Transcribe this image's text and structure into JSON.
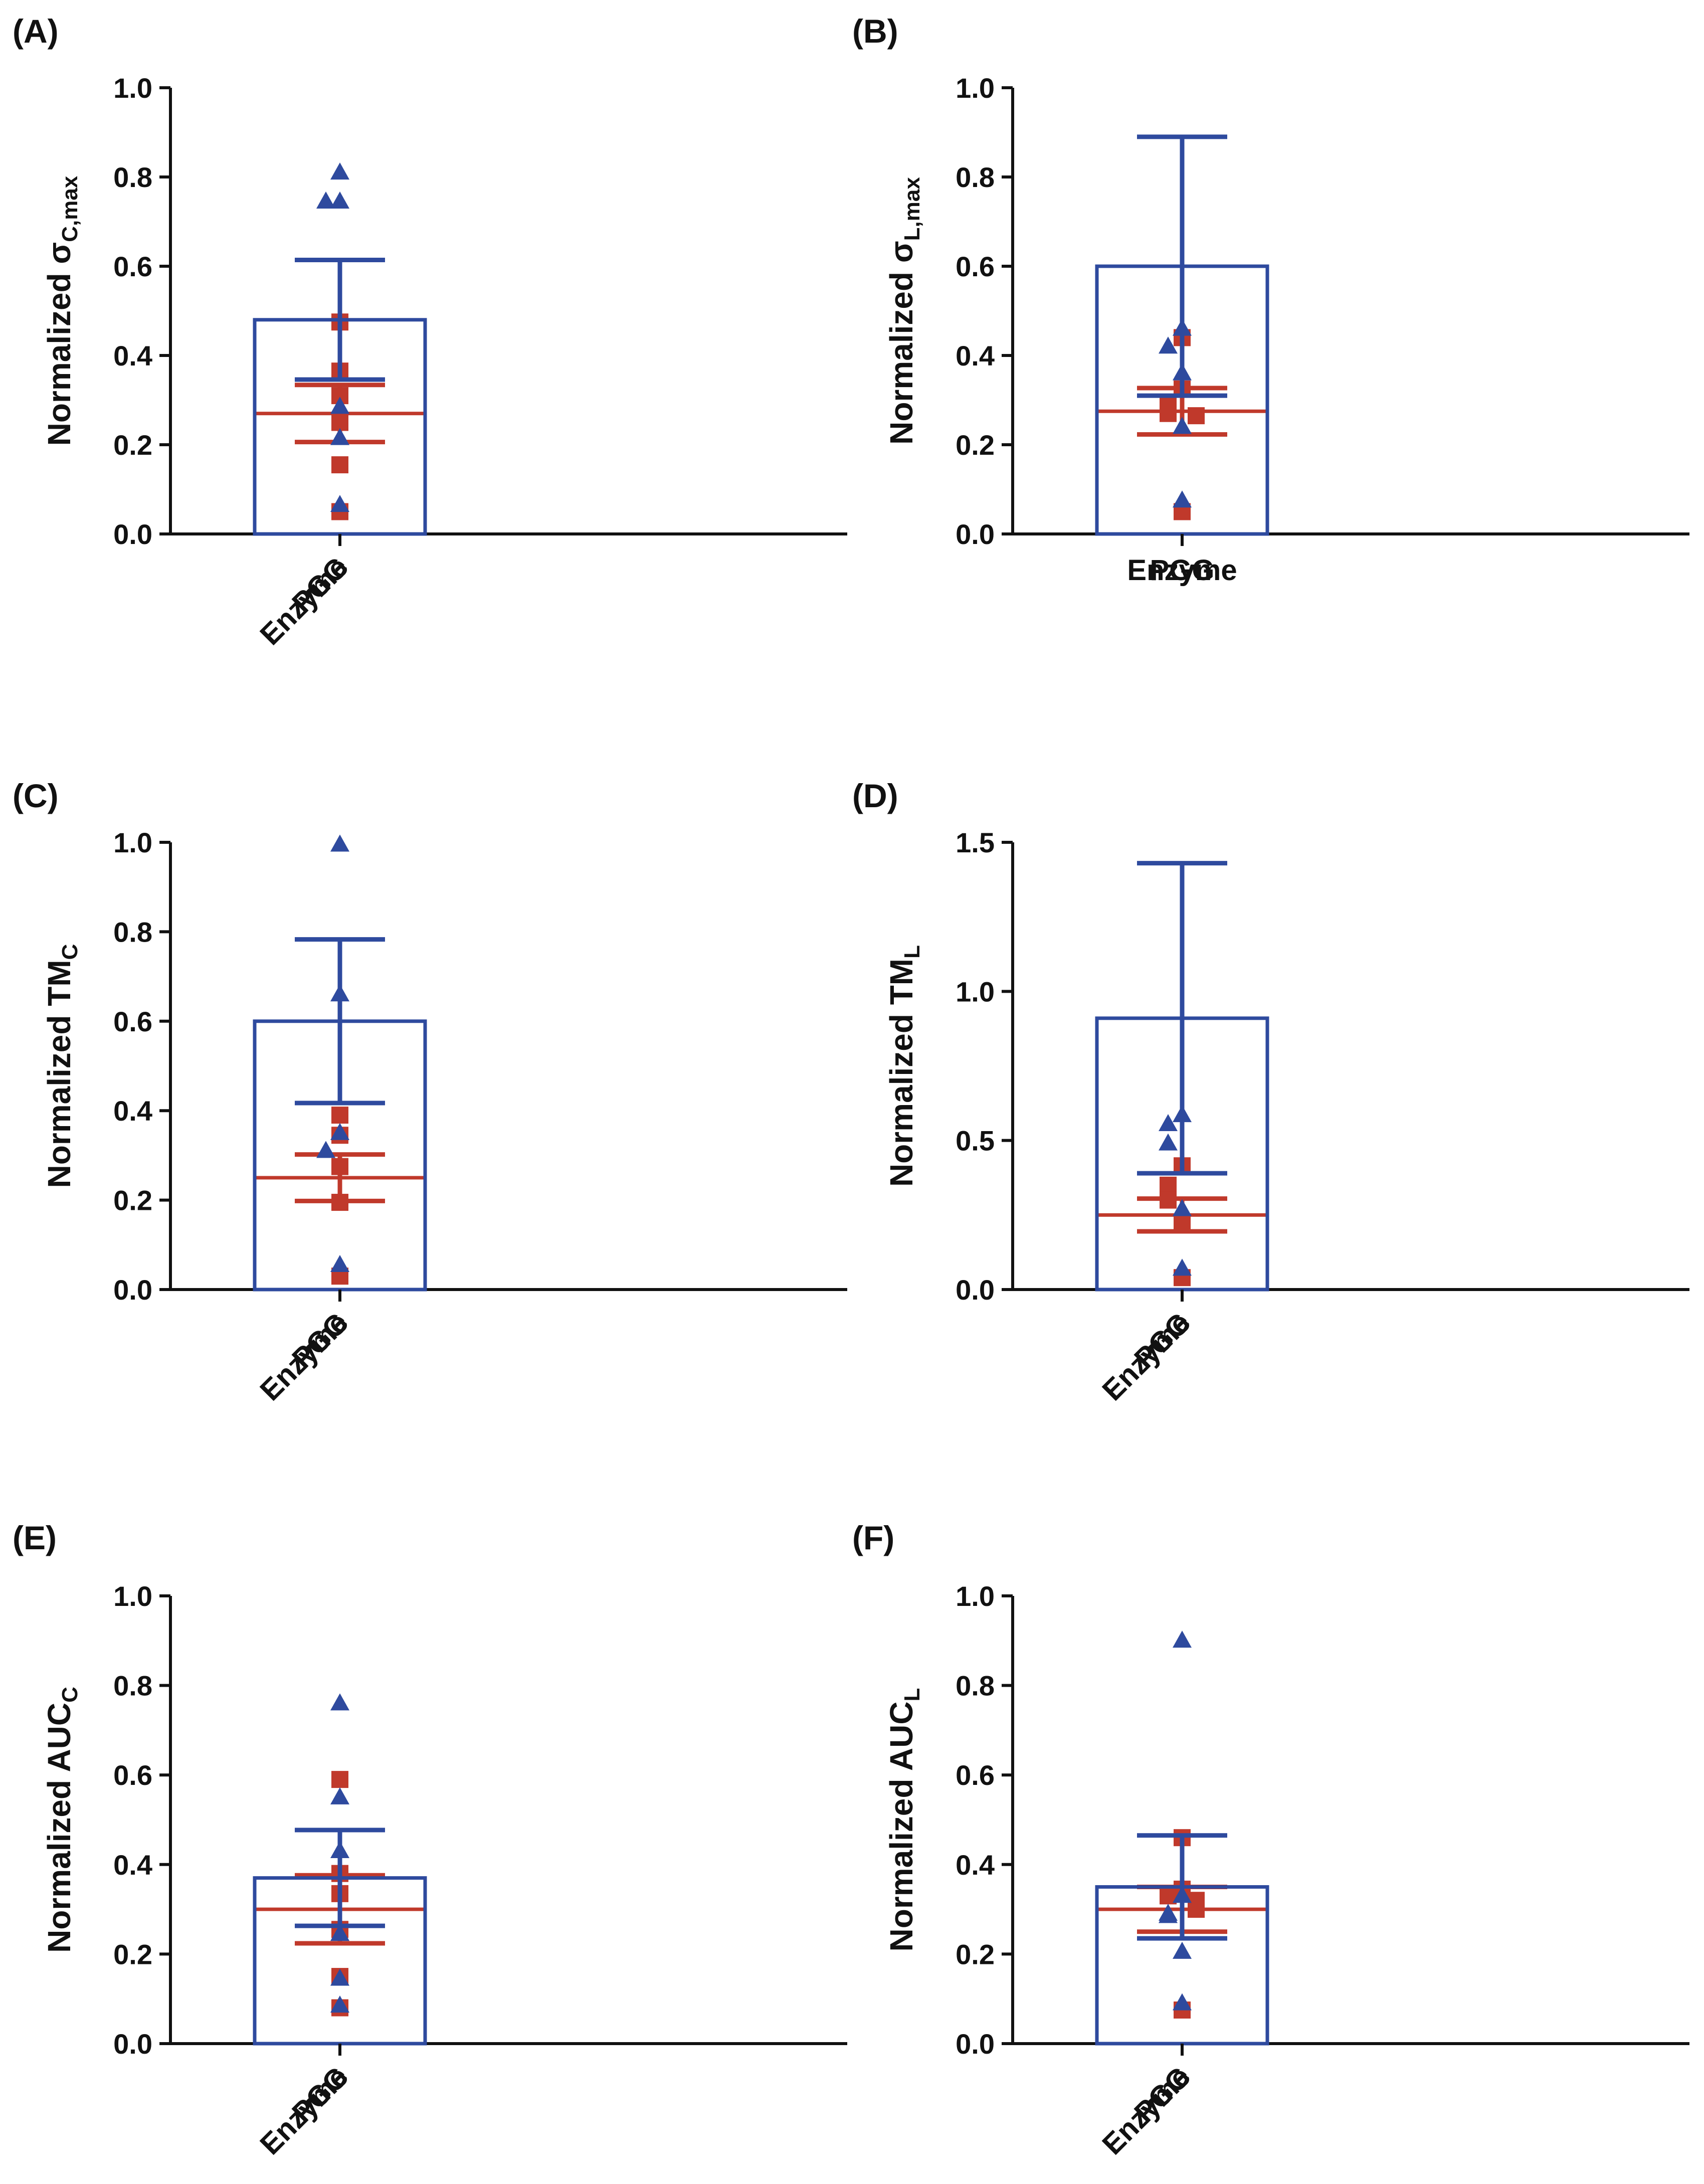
{
  "colors": {
    "enzyme": "#c0392b",
    "pgg": "#2e4a9e",
    "axis": "#111111"
  },
  "chart_data": [
    {
      "panel": "(A)",
      "type": "bar",
      "ylabel": {
        "main": "Normalized ",
        "symbol": "σ",
        "sub": "C,max"
      },
      "ylim": [
        0,
        1.0
      ],
      "yticks": [
        "0.0",
        "0.2",
        "0.4",
        "0.6",
        "0.8",
        "1.0"
      ],
      "yvalues": [
        0,
        0.2,
        0.4,
        0.6,
        0.8,
        1.0
      ],
      "categories": [
        "Enzyme",
        "PGG"
      ],
      "rotated_labels": true,
      "series": [
        {
          "name": "Enzyme",
          "mean": 0.27,
          "sem": 0.064,
          "points": [
            0.475,
            0.365,
            0.31,
            0.25,
            0.155,
            0.05
          ]
        },
        {
          "name": "PGG",
          "mean": 0.48,
          "sem": 0.134,
          "points": [
            0.81,
            0.745,
            0.745,
            0.285,
            0.215,
            0.065
          ]
        }
      ]
    },
    {
      "panel": "(B)",
      "type": "bar",
      "ylabel": {
        "main": "Normalized ",
        "symbol": "σ",
        "sub": "L,max"
      },
      "ylim": [
        0,
        1.0
      ],
      "yticks": [
        "0.0",
        "0.2",
        "0.4",
        "0.6",
        "0.8",
        "1.0"
      ],
      "yvalues": [
        0,
        0.2,
        0.4,
        0.6,
        0.8,
        1.0
      ],
      "categories": [
        "Enzyme",
        "PGG"
      ],
      "rotated_labels": false,
      "series": [
        {
          "name": "Enzyme",
          "mean": 0.275,
          "sem": 0.052,
          "points": [
            0.44,
            0.325,
            0.295,
            0.27,
            0.265,
            0.05
          ]
        },
        {
          "name": "PGG",
          "mean": 0.6,
          "sem": 0.29,
          "points": [
            0.46,
            0.42,
            0.36,
            0.24,
            0.075
          ]
        }
      ]
    },
    {
      "panel": "(C)",
      "type": "bar",
      "ylabel": {
        "main": "Normalized TM",
        "symbol": "",
        "sub": "C"
      },
      "ylim": [
        0,
        1.0
      ],
      "yticks": [
        "0.0",
        "0.2",
        "0.4",
        "0.6",
        "0.8",
        "1.0"
      ],
      "yvalues": [
        0,
        0.2,
        0.4,
        0.6,
        0.8,
        1.0
      ],
      "categories": [
        "Enzyme",
        "PGG"
      ],
      "rotated_labels": true,
      "series": [
        {
          "name": "Enzyme",
          "mean": 0.25,
          "sem": 0.052,
          "points": [
            0.39,
            0.345,
            0.275,
            0.195,
            0.03
          ]
        },
        {
          "name": "PGG",
          "mean": 0.6,
          "sem": 0.183,
          "points": [
            0.995,
            0.66,
            0.35,
            0.31,
            0.055
          ]
        }
      ]
    },
    {
      "panel": "(D)",
      "type": "bar",
      "ylabel": {
        "main": "Normalized TM",
        "symbol": "",
        "sub": "L"
      },
      "ylim": [
        0,
        1.5
      ],
      "yticks": [
        "0.0",
        "0.5",
        "1.0",
        "1.5"
      ],
      "yvalues": [
        0,
        0.5,
        1.0,
        1.5
      ],
      "categories": [
        "Enzyme",
        "PGG"
      ],
      "rotated_labels": true,
      "series": [
        {
          "name": "Enzyme",
          "mean": 0.25,
          "sem": 0.055,
          "points": [
            0.415,
            0.35,
            0.3,
            0.225,
            0.04
          ]
        },
        {
          "name": "PGG",
          "mean": 0.91,
          "sem": 0.52,
          "points": [
            0.585,
            0.555,
            0.49,
            0.27,
            0.07
          ]
        }
      ]
    },
    {
      "panel": "(E)",
      "type": "bar",
      "ylabel": {
        "main": "Normalized AUC",
        "symbol": "",
        "sub": "C"
      },
      "ylim": [
        0,
        1.0
      ],
      "yticks": [
        "0.0",
        "0.2",
        "0.4",
        "0.6",
        "0.8",
        "1.0"
      ],
      "yvalues": [
        0,
        0.2,
        0.4,
        0.6,
        0.8,
        1.0
      ],
      "categories": [
        "Enzyme",
        "PGG"
      ],
      "rotated_labels": true,
      "series": [
        {
          "name": "Enzyme",
          "mean": 0.3,
          "sem": 0.076,
          "points": [
            0.59,
            0.38,
            0.335,
            0.255,
            0.15,
            0.08
          ]
        },
        {
          "name": "PGG",
          "mean": 0.37,
          "sem": 0.107,
          "points": [
            0.76,
            0.55,
            0.43,
            0.245,
            0.145,
            0.085
          ]
        }
      ]
    },
    {
      "panel": "(F)",
      "type": "bar",
      "ylabel": {
        "main": "Normalized AUC",
        "symbol": "",
        "sub": "L"
      },
      "ylim": [
        0,
        1.0
      ],
      "yticks": [
        "0.0",
        "0.2",
        "0.4",
        "0.6",
        "0.8",
        "1.0"
      ],
      "yvalues": [
        0,
        0.2,
        0.4,
        0.6,
        0.8,
        1.0
      ],
      "categories": [
        "Enzyme",
        "PGG"
      ],
      "rotated_labels": true,
      "series": [
        {
          "name": "Enzyme",
          "mean": 0.3,
          "sem": 0.05,
          "points": [
            0.46,
            0.345,
            0.33,
            0.32,
            0.3,
            0.075
          ]
        },
        {
          "name": "PGG",
          "mean": 0.35,
          "sem": 0.115,
          "points": [
            0.9,
            0.33,
            0.29,
            0.285,
            0.205,
            0.09
          ]
        }
      ]
    }
  ]
}
